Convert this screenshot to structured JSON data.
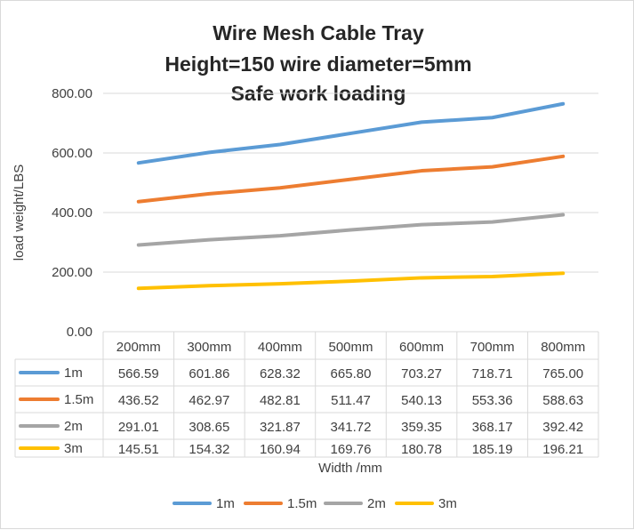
{
  "chart_data": {
    "type": "line",
    "title": [
      "Wire Mesh Cable Tray",
      "Height=150  wire diameter=5mm",
      "Safe work loading"
    ],
    "xlabel": "Width /mm",
    "ylabel": "load weight/LBS",
    "ylim": [
      0,
      800
    ],
    "yticks": [
      "0.00",
      "200.00",
      "400.00",
      "600.00",
      "800.00"
    ],
    "ytick_values": [
      0,
      200,
      400,
      600,
      800
    ],
    "grid": true,
    "legend_position": "bottom",
    "categories": [
      "200mm",
      "300mm",
      "400mm",
      "500mm",
      "600mm",
      "700mm",
      "800mm"
    ],
    "series": [
      {
        "name": "1m",
        "color": "#5b9bd5",
        "values": [
          "566.59",
          "601.86",
          "628.32",
          "665.80",
          "703.27",
          "718.71",
          "765.00"
        ]
      },
      {
        "name": "1.5m",
        "color": "#ed7d31",
        "values": [
          "436.52",
          "462.97",
          "482.81",
          "511.47",
          "540.13",
          "553.36",
          "588.63"
        ]
      },
      {
        "name": "2m",
        "color": "#a5a5a5",
        "values": [
          "291.01",
          "308.65",
          "321.87",
          "341.72",
          "359.35",
          "368.17",
          "392.42"
        ]
      },
      {
        "name": "3m",
        "color": "#ffc000",
        "values": [
          "145.51",
          "154.32",
          "160.94",
          "169.76",
          "180.78",
          "185.19",
          "196.21"
        ]
      }
    ]
  }
}
